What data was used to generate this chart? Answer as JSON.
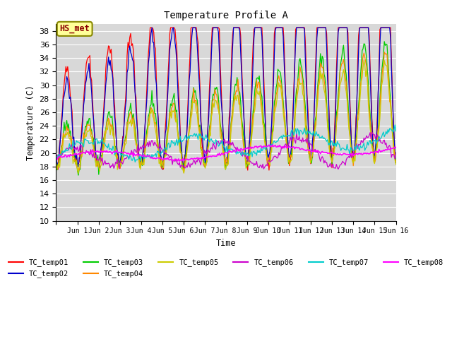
{
  "title": "Temperature Profile A",
  "xlabel": "Time",
  "ylabel": "Temperature (C)",
  "ylim": [
    10,
    39
  ],
  "yticks": [
    10,
    12,
    14,
    16,
    18,
    20,
    22,
    24,
    26,
    28,
    30,
    32,
    34,
    36,
    38
  ],
  "bg_color": "#d8d8d8",
  "plot_bg": "#d8d8d8",
  "annotation_text": "HS_met",
  "annotation_bg": "#ffff99",
  "annotation_border": "#888800",
  "annotation_text_color": "#8b0000",
  "series_colors": {
    "TC_temp01": "#ff0000",
    "TC_temp02": "#0000cc",
    "TC_temp03": "#00cc00",
    "TC_temp04": "#ff8800",
    "TC_temp05": "#cccc00",
    "TC_temp06": "#cc00cc",
    "TC_temp07": "#00cccc",
    "TC_temp08": "#ff00ff"
  },
  "n_days": 16
}
